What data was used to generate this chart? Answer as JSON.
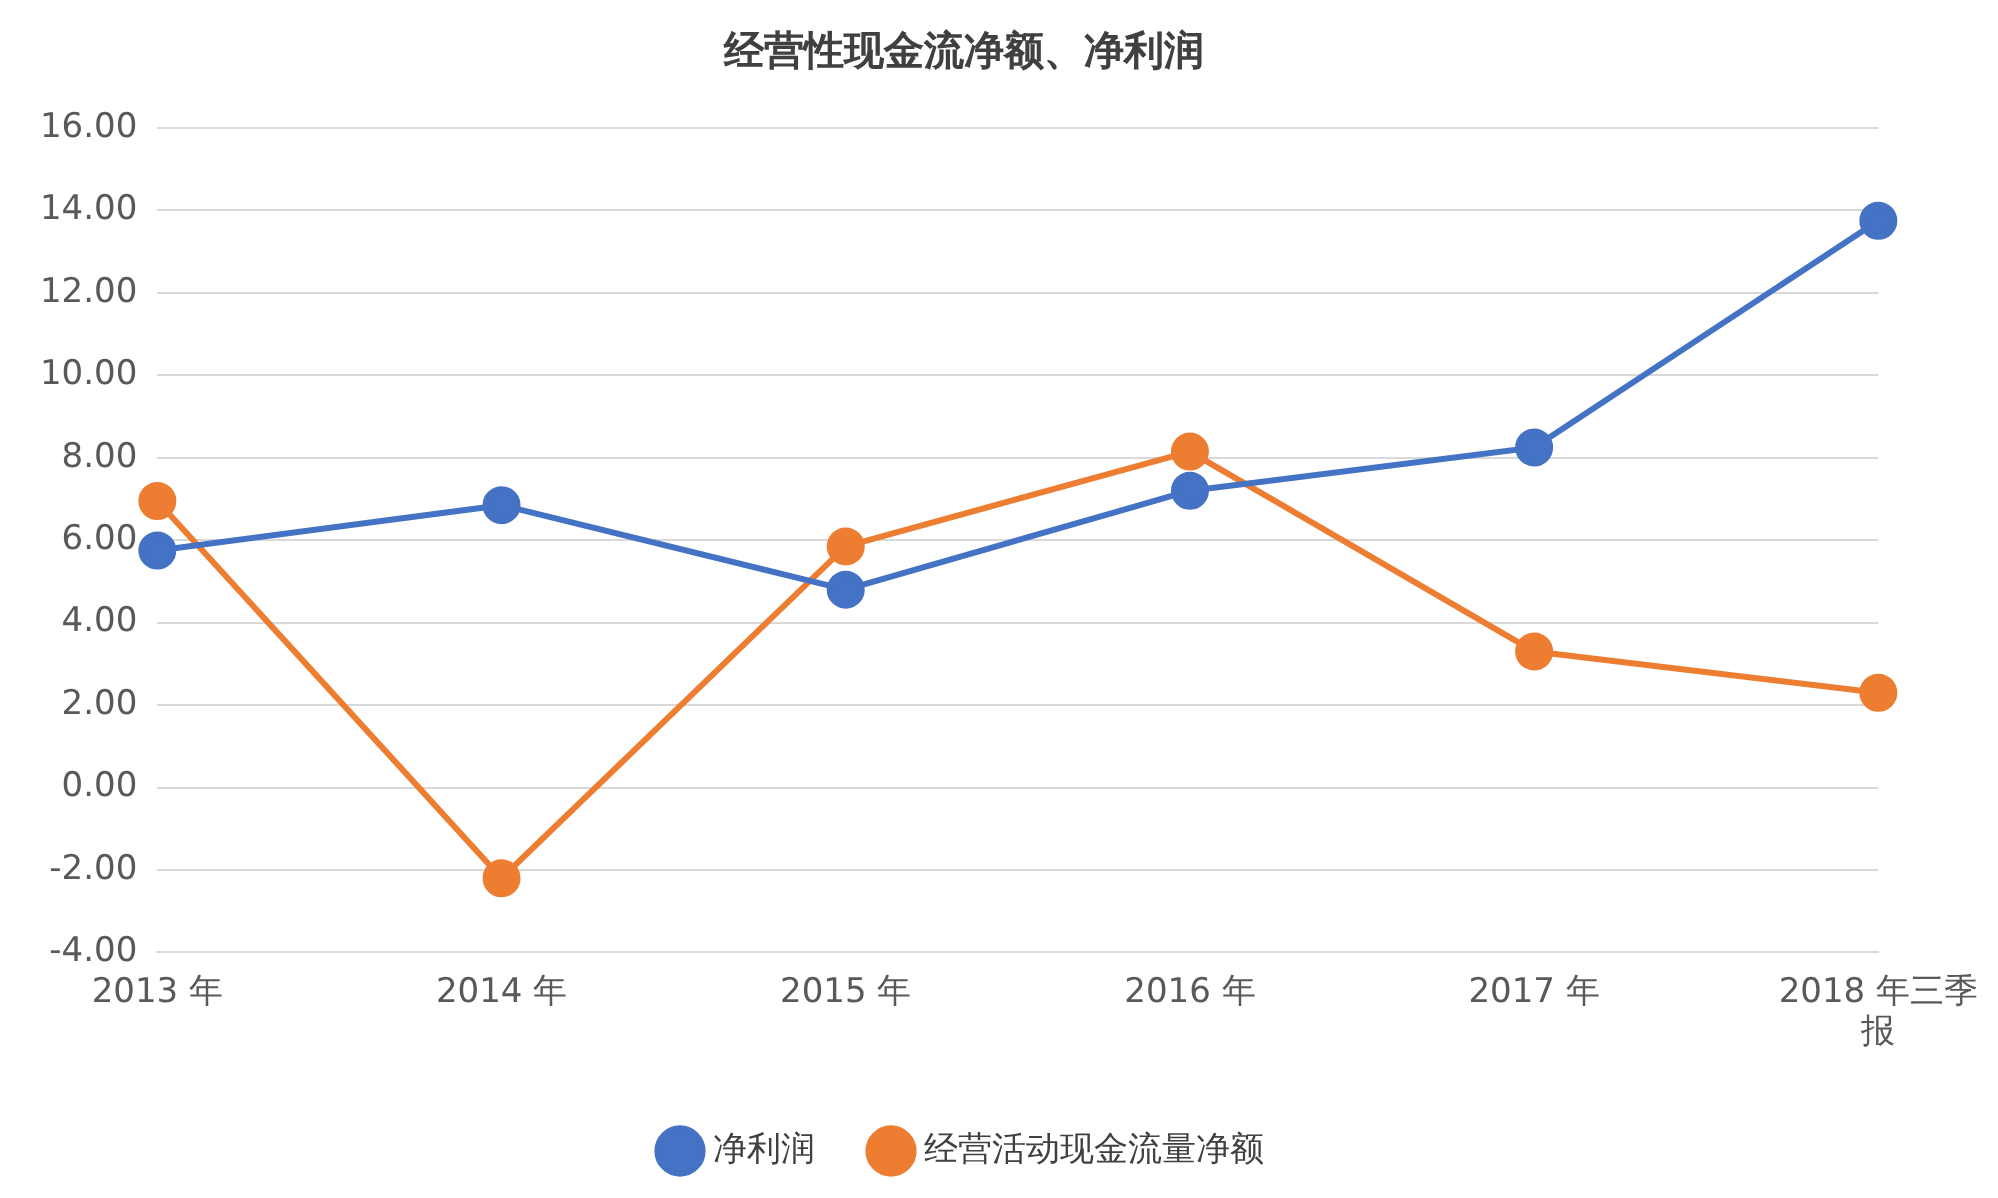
{
  "chart_data": {
    "type": "line",
    "title": "经营性现金流净额、净利润",
    "categories": [
      "2013 年",
      "2014 年",
      "2015 年",
      "2016 年",
      "2017 年",
      "2018 年三季报"
    ],
    "series": [
      {
        "name": "净利润",
        "color": "#4472c4",
        "values": [
          5.75,
          6.85,
          4.8,
          7.2,
          8.25,
          13.75
        ]
      },
      {
        "name": "经营活动现金流量净额",
        "color": "#ed7d31",
        "values": [
          6.95,
          -2.2,
          5.85,
          8.15,
          3.3,
          2.3
        ]
      }
    ],
    "ylim": [
      -4,
      16
    ],
    "yticks": [
      {
        "value": -4,
        "label": "-4.00"
      },
      {
        "value": -2,
        "label": "-2.00"
      },
      {
        "value": 0,
        "label": "0.00"
      },
      {
        "value": 2,
        "label": "2.00"
      },
      {
        "value": 4,
        "label": "4.00"
      },
      {
        "value": 6,
        "label": "6.00"
      },
      {
        "value": 8,
        "label": "8.00"
      },
      {
        "value": 10,
        "label": "10.00"
      },
      {
        "value": 12,
        "label": "12.00"
      },
      {
        "value": 14,
        "label": "14.00"
      },
      {
        "value": 16,
        "label": "16.00"
      }
    ],
    "grid": "y",
    "legend": "bottom",
    "marker": "circle",
    "line_style": "solid"
  }
}
